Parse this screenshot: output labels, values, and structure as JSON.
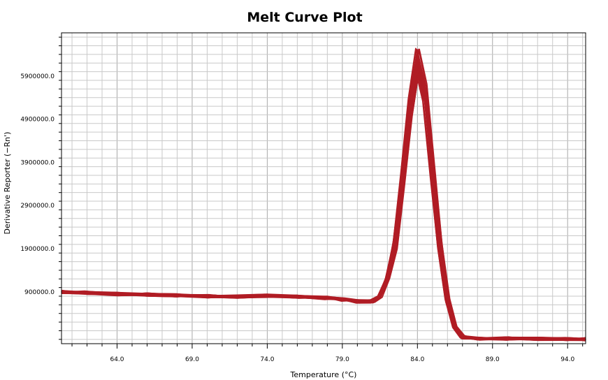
{
  "chart_data": {
    "type": "line",
    "title": "Melt Curve Plot",
    "xlabel": "Temperature (°C)",
    "ylabel": "Derivative Reporter (−Rn')",
    "xlim": [
      60.3,
      95.2
    ],
    "ylim": [
      -300000,
      6900000
    ],
    "xticks": [
      64.0,
      69.0,
      74.0,
      79.0,
      84.0,
      89.0,
      94.0
    ],
    "xtick_labels": [
      "64.0",
      "69.0",
      "74.0",
      "79.0",
      "84.0",
      "89.0",
      "94.0"
    ],
    "yticks": [
      900000,
      1900000,
      2900000,
      3900000,
      4900000,
      5900000
    ],
    "ytick_labels": [
      "900000.0",
      "1900000.0",
      "2900000.0",
      "3900000.0",
      "4900000.0",
      "5900000.0"
    ],
    "grid": true,
    "series_color": "#b01c24",
    "series": [
      {
        "x": [
          60.3,
          62,
          64,
          66,
          68,
          70,
          72,
          74,
          76,
          78,
          79,
          80,
          81,
          81.5,
          82,
          82.5,
          83,
          83.5,
          84,
          84.5,
          85,
          85.5,
          86,
          86.5,
          87,
          88,
          90,
          92,
          94,
          95.2
        ],
        "y": [
          900000,
          880000,
          850000,
          840000,
          820000,
          800000,
          790000,
          810000,
          790000,
          760000,
          720000,
          680000,
          680000,
          800000,
          1200000,
          2000000,
          3500000,
          5200000,
          6400000,
          5600000,
          3800000,
          2000000,
          700000,
          100000,
          -150000,
          -180000,
          -180000,
          -190000,
          -190000,
          -200000
        ]
      }
    ]
  }
}
